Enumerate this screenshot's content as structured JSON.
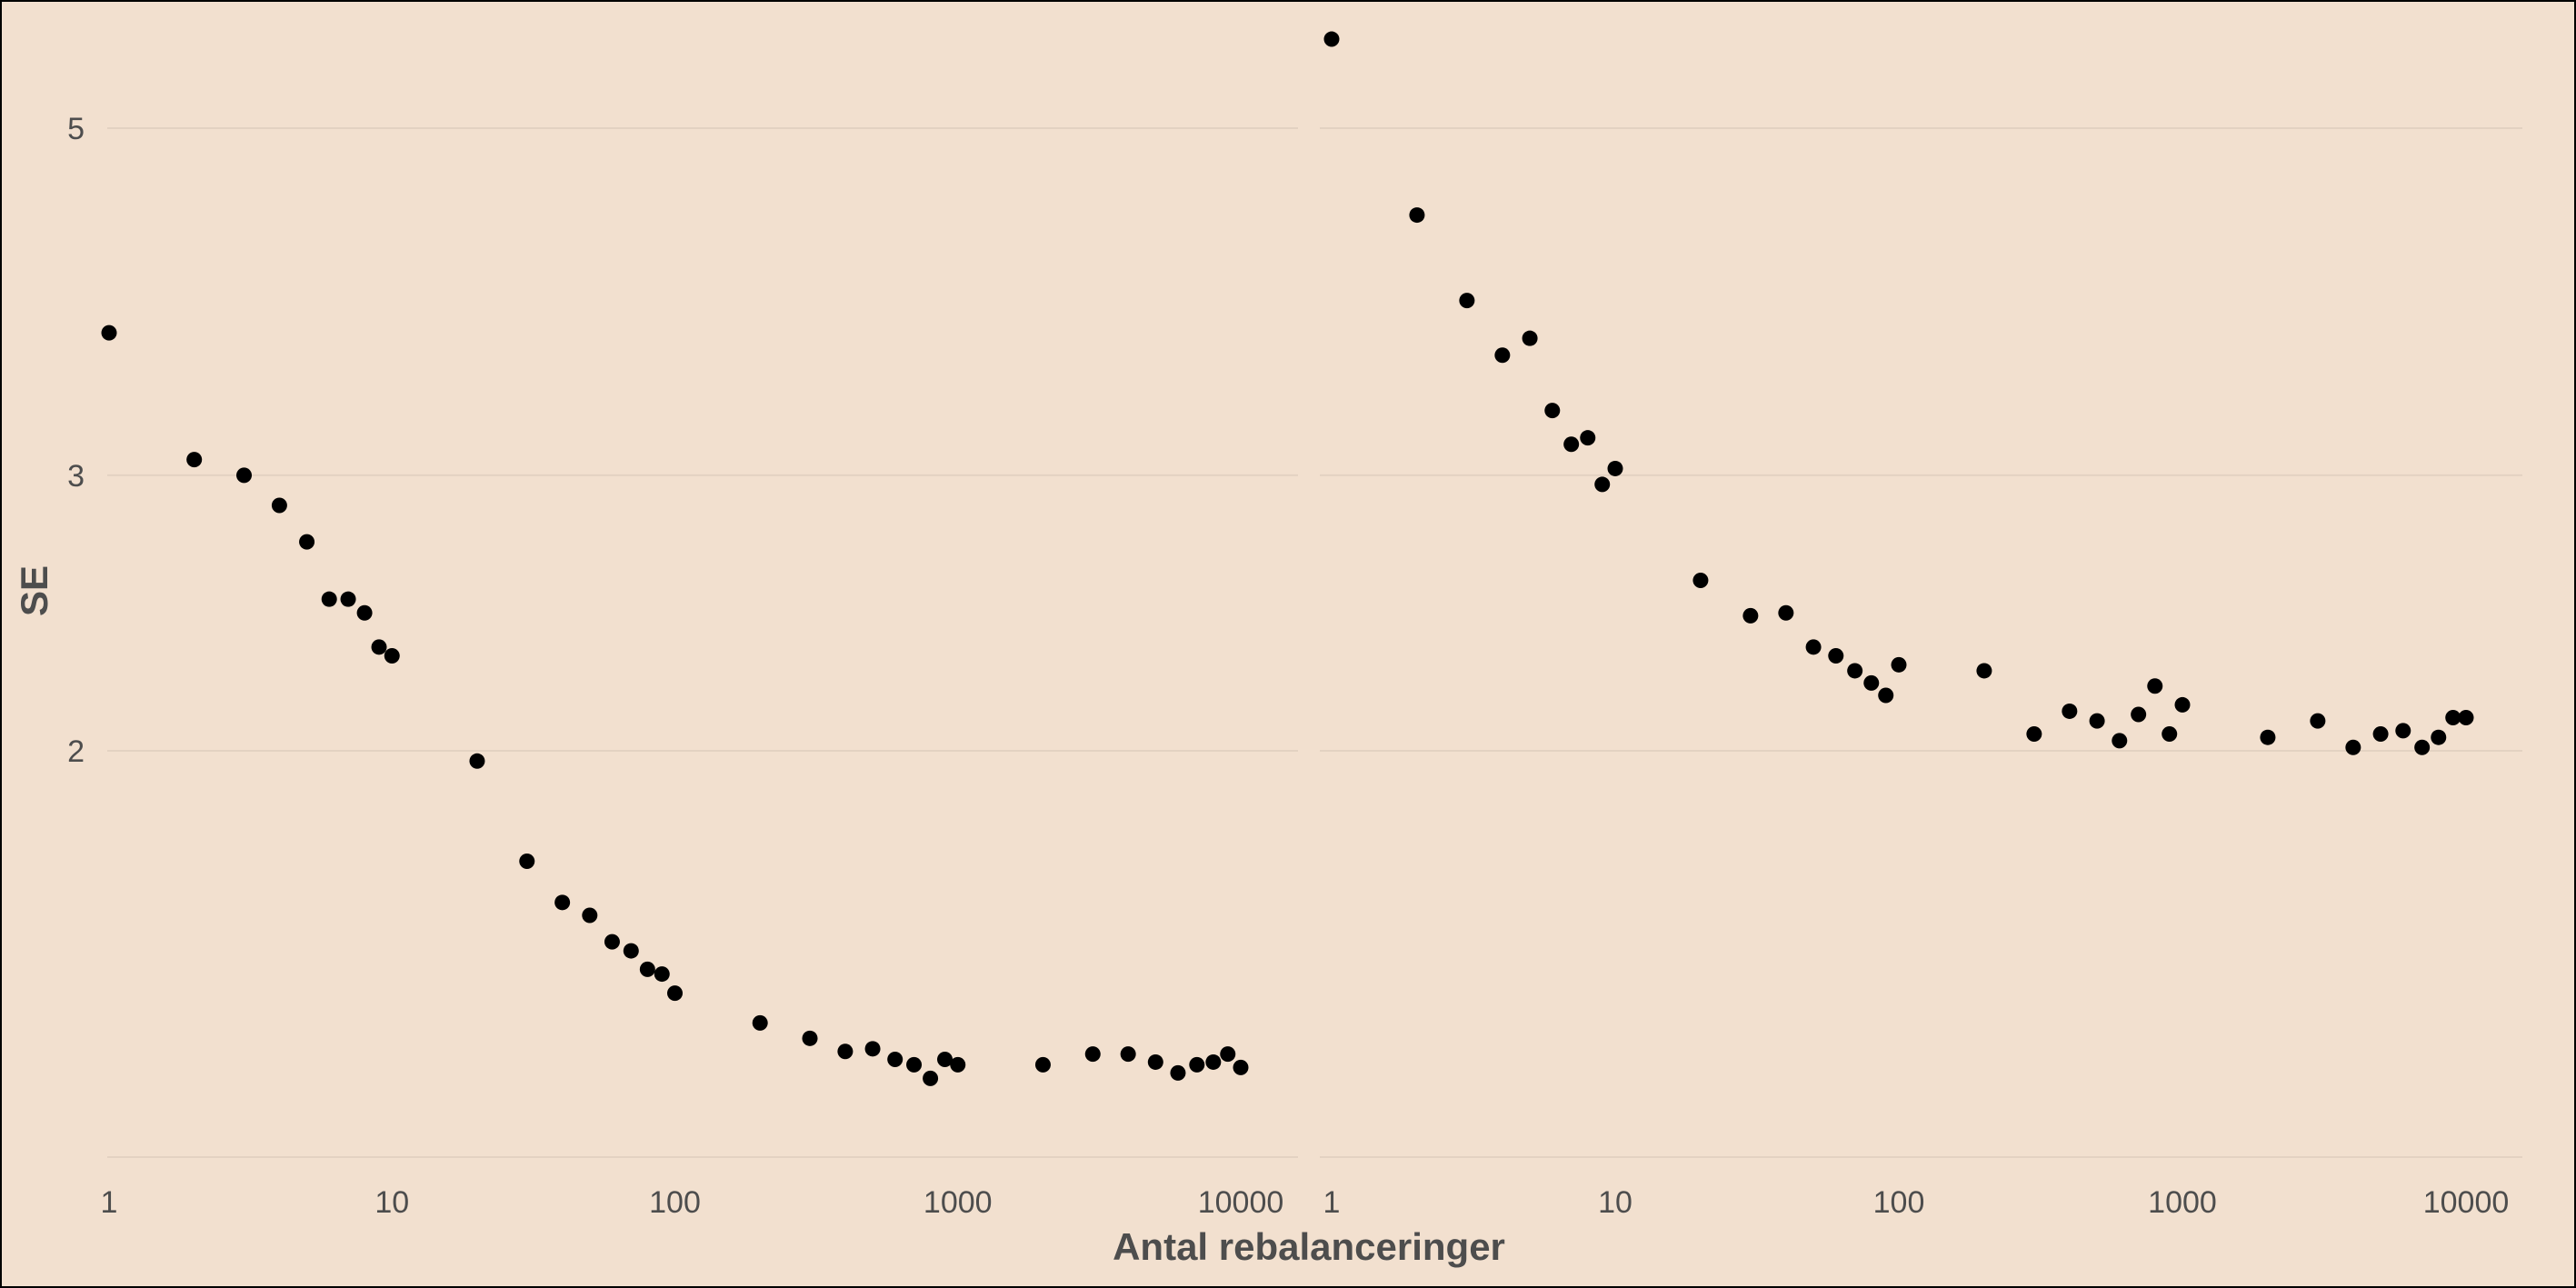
{
  "chart_data": [
    {
      "type": "scatter",
      "xscale": "log10",
      "yscale": "log",
      "xlim": [
        1,
        10000
      ],
      "ylim": [
        1.1,
        6
      ],
      "xticks": [
        1,
        10,
        100,
        1000,
        10000
      ],
      "xtick_labels": [
        "1",
        "10",
        "100",
        "1000",
        "10000"
      ],
      "yticks": [
        2,
        3,
        5
      ],
      "ytick_labels": [
        "2",
        "3",
        "5"
      ],
      "grid": "horizontal major",
      "points": [
        [
          1,
          3.7
        ],
        [
          2,
          3.07
        ],
        [
          3,
          3.0
        ],
        [
          4,
          2.87
        ],
        [
          5,
          2.72
        ],
        [
          6,
          2.5
        ],
        [
          7,
          2.5
        ],
        [
          8,
          2.45
        ],
        [
          9,
          2.33
        ],
        [
          10,
          2.3
        ],
        [
          20,
          1.97
        ],
        [
          30,
          1.7
        ],
        [
          40,
          1.6
        ],
        [
          50,
          1.57
        ],
        [
          60,
          1.51
        ],
        [
          70,
          1.49
        ],
        [
          80,
          1.45
        ],
        [
          90,
          1.44
        ],
        [
          100,
          1.4
        ],
        [
          200,
          1.34
        ],
        [
          300,
          1.31
        ],
        [
          400,
          1.285
        ],
        [
          500,
          1.29
        ],
        [
          600,
          1.27
        ],
        [
          700,
          1.26
        ],
        [
          800,
          1.235
        ],
        [
          900,
          1.27
        ],
        [
          1000,
          1.26
        ],
        [
          2000,
          1.26
        ],
        [
          3000,
          1.28
        ],
        [
          4000,
          1.28
        ],
        [
          5000,
          1.265
        ],
        [
          6000,
          1.245
        ],
        [
          7000,
          1.26
        ],
        [
          8000,
          1.265
        ],
        [
          9000,
          1.28
        ],
        [
          10000,
          1.255
        ]
      ]
    },
    {
      "type": "scatter",
      "xscale": "log10",
      "yscale": "log",
      "xlim": [
        1,
        10000
      ],
      "ylim": [
        1.1,
        6
      ],
      "xticks": [
        1,
        10,
        100,
        1000,
        10000
      ],
      "xtick_labels": [
        "1",
        "10",
        "100",
        "1000",
        "10000"
      ],
      "yticks": [
        2,
        3,
        5
      ],
      "grid": "horizontal major",
      "points": [
        [
          1,
          5.7
        ],
        [
          2,
          4.4
        ],
        [
          3,
          3.88
        ],
        [
          4,
          3.58
        ],
        [
          5,
          3.67
        ],
        [
          6,
          3.3
        ],
        [
          7,
          3.14
        ],
        [
          8,
          3.17
        ],
        [
          9,
          2.96
        ],
        [
          10,
          3.03
        ],
        [
          20,
          2.57
        ],
        [
          30,
          2.44
        ],
        [
          40,
          2.45
        ],
        [
          50,
          2.33
        ],
        [
          60,
          2.3
        ],
        [
          70,
          2.25
        ],
        [
          80,
          2.21
        ],
        [
          90,
          2.17
        ],
        [
          100,
          2.27
        ],
        [
          200,
          2.25
        ],
        [
          300,
          2.05
        ],
        [
          400,
          2.12
        ],
        [
          500,
          2.09
        ],
        [
          600,
          2.03
        ],
        [
          700,
          2.11
        ],
        [
          800,
          2.2
        ],
        [
          900,
          2.05
        ],
        [
          1000,
          2.14
        ],
        [
          2000,
          2.04
        ],
        [
          3000,
          2.09
        ],
        [
          4000,
          2.01
        ],
        [
          5000,
          2.05
        ],
        [
          6000,
          2.06
        ],
        [
          7000,
          2.01
        ],
        [
          8000,
          2.04
        ],
        [
          9000,
          2.1
        ],
        [
          10000,
          2.1
        ]
      ]
    }
  ],
  "axes": {
    "xlabel": "Antal rebalanceringer",
    "ylabel": "SE"
  }
}
